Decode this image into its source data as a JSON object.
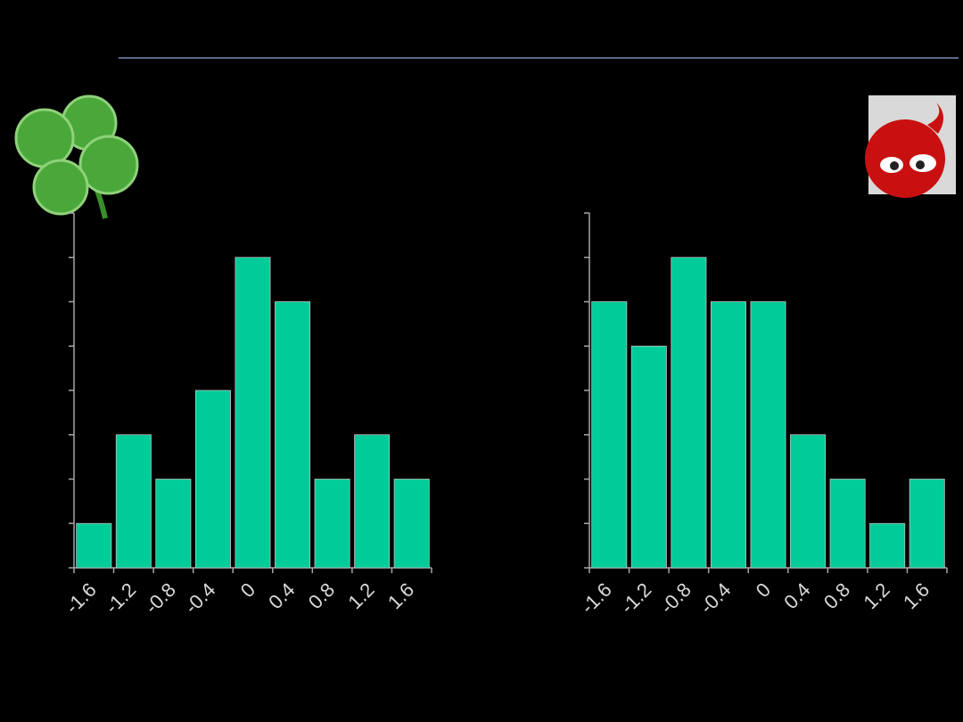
{
  "chart_data": [
    {
      "type": "bar",
      "categories": [
        "-1.6",
        "-1.2",
        "-0.8",
        "-0.4",
        "0",
        "0.4",
        "0.8",
        "1.2",
        "1.6"
      ],
      "values": [
        1,
        3,
        2,
        4,
        7,
        6,
        2,
        3,
        2
      ],
      "color": "#00cc99",
      "ylim": [
        0,
        8
      ],
      "yticks": [
        0,
        1,
        2,
        3,
        4,
        5,
        6,
        7,
        8
      ]
    },
    {
      "type": "bar",
      "categories": [
        "-1.6",
        "-1.2",
        "-0.8",
        "-0.4",
        "0",
        "0.4",
        "0.8",
        "1.2",
        "1.6"
      ],
      "values": [
        6,
        5,
        7,
        6,
        6,
        3,
        2,
        1,
        2
      ],
      "color": "#00cc99",
      "ylim": [
        0,
        8
      ],
      "yticks": [
        0,
        1,
        2,
        3,
        4,
        5,
        6,
        7,
        8
      ]
    }
  ]
}
